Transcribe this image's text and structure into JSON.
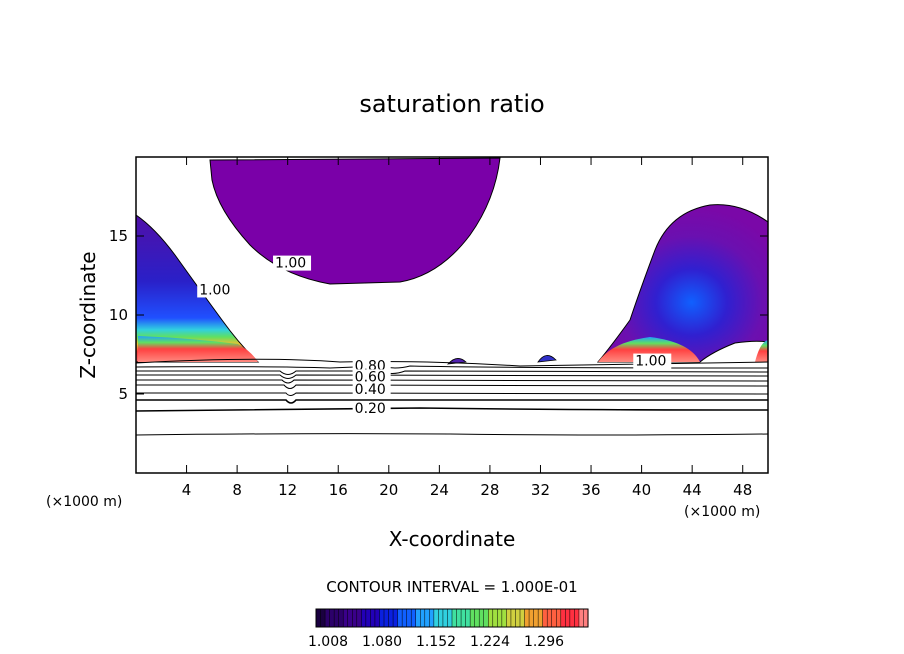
{
  "chart_data": {
    "type": "contour",
    "title": "saturation ratio",
    "xlabel": "X-coordinate",
    "ylabel": "Z-coordinate",
    "x_unit_left": "(×1000 m)",
    "x_unit_right": "(×1000 m)",
    "xlim": [
      0,
      50
    ],
    "ylim": [
      0,
      20
    ],
    "x_ticks": [
      4,
      8,
      12,
      16,
      20,
      24,
      28,
      32,
      36,
      40,
      44,
      48
    ],
    "y_ticks": [
      5,
      10,
      15
    ],
    "contour_interval_text": "CONTOUR INTERVAL = 1.000E-01",
    "contour_line_levels": [
      0.1,
      0.2,
      0.3,
      0.4,
      0.5,
      0.6,
      0.7,
      0.8,
      0.9,
      1.0
    ],
    "contour_labels": [
      {
        "text": "1.00",
        "x": 11.0,
        "y": 13.0
      },
      {
        "text": "1.00",
        "x": 5.0,
        "y": 11.3
      },
      {
        "text": "1.00",
        "x": 39.5,
        "y": 6.8
      },
      {
        "text": "0.80",
        "x": 17.3,
        "y": 6.5
      },
      {
        "text": "0.60",
        "x": 17.3,
        "y": 5.8
      },
      {
        "text": "0.40",
        "x": 17.3,
        "y": 5.0
      },
      {
        "text": "0.20",
        "x": 17.3,
        "y": 3.8
      }
    ],
    "colorbar": {
      "ticks": [
        "1.008",
        "1.080",
        "1.152",
        "1.224",
        "1.296"
      ],
      "colors": [
        "#1a0040",
        "#2c006a",
        "#3a008a",
        "#2200b8",
        "#0a20e0",
        "#1060ff",
        "#20a0ff",
        "#30d0e0",
        "#40e0a0",
        "#60e060",
        "#a0e040",
        "#d0d040",
        "#f0a030",
        "#ff6040",
        "#ff3040",
        "#ff8080"
      ]
    },
    "grid": false,
    "legend": "colorbar-bottom"
  }
}
